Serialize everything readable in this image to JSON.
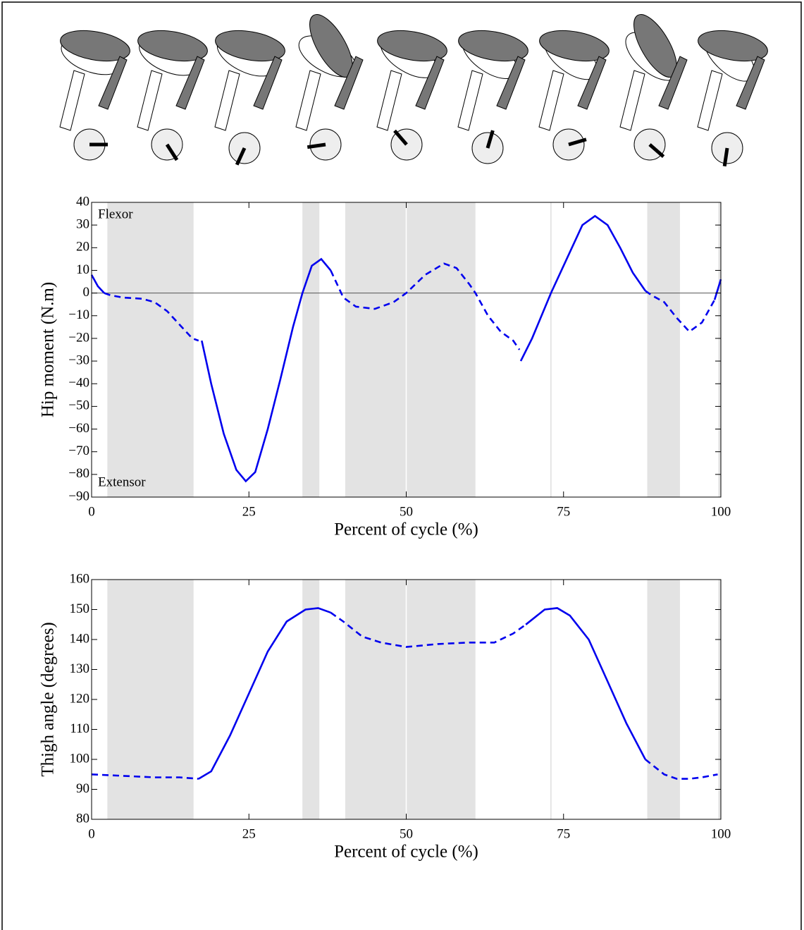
{
  "chart_data": [
    {
      "type": "line",
      "xlabel": "Percent of cycle (%)",
      "ylabel": "Hip moment (N.m)",
      "annotations": [
        "Flexor",
        "Extensor"
      ],
      "xlim": [
        0,
        100
      ],
      "xticks": [
        0,
        25,
        50,
        75,
        100
      ],
      "ylim": [
        -90,
        40
      ],
      "yticks": [
        {
          "value": -90,
          "label": "−90"
        },
        {
          "value": -80,
          "label": "−80"
        },
        {
          "value": -70,
          "label": "−70"
        },
        {
          "value": -60,
          "label": "−60"
        },
        {
          "value": -50,
          "label": "−50"
        },
        {
          "value": -40,
          "label": "−40"
        },
        {
          "value": -30,
          "label": "−30"
        },
        {
          "value": -20,
          "label": "−20"
        },
        {
          "value": -10,
          "label": "−10"
        },
        0,
        10,
        20,
        30,
        40
      ],
      "shaded_regions": [
        [
          2.5,
          16.2
        ],
        [
          33.5,
          36.2
        ],
        [
          40.3,
          61
        ],
        [
          88.3,
          93.5
        ],
        [
          99.6,
          100
        ]
      ],
      "shade_color": "#e3e3e3",
      "vlines": [
        50,
        73
      ],
      "hline": 0,
      "x": [
        0,
        1,
        2,
        3,
        5,
        8,
        10,
        12,
        14,
        16,
        17,
        17.5,
        19,
        21,
        23,
        24.5,
        26,
        28,
        30,
        32,
        33.5,
        35,
        36.5,
        38,
        40,
        42,
        45,
        48,
        50,
        53,
        56,
        58,
        60,
        61,
        63,
        65,
        67,
        68,
        68.2,
        70,
        73,
        76,
        78,
        80,
        82,
        84,
        86,
        88,
        89,
        91,
        93,
        95,
        97,
        99,
        100
      ],
      "series": [
        {
          "color": "#0000ee",
          "style": "solid",
          "values": [
            8,
            3,
            0,
            null,
            null,
            null,
            null,
            null,
            null,
            null,
            null,
            -21,
            -40,
            -62,
            -78,
            -83,
            -79,
            -60,
            -38,
            -15,
            0,
            12,
            15,
            10,
            null,
            null,
            null,
            null,
            null,
            null,
            null,
            null,
            null,
            null,
            null,
            null,
            null,
            null,
            -30,
            -20,
            0,
            18,
            30,
            34,
            30,
            20,
            9,
            1,
            null,
            null,
            null,
            null,
            null,
            -3,
            6
          ]
        },
        {
          "color": "#0000ee",
          "style": "dashed",
          "values": [
            null,
            null,
            0,
            -1,
            -2,
            -2.5,
            -4,
            -8,
            -14,
            -20,
            -21,
            null,
            null,
            null,
            null,
            null,
            null,
            null,
            null,
            null,
            null,
            null,
            null,
            10,
            -2,
            -6,
            -7,
            -4,
            0,
            8,
            13,
            11,
            4,
            0,
            -10,
            -17,
            -21,
            -25,
            null,
            null,
            null,
            null,
            null,
            null,
            null,
            null,
            null,
            1,
            -1,
            -4,
            -11,
            -17,
            -13,
            -3,
            null
          ]
        }
      ]
    },
    {
      "type": "line",
      "xlabel": "Percent of cycle (%)",
      "ylabel": "Thigh angle (degrees)",
      "xlim": [
        0,
        100
      ],
      "xticks": [
        0,
        25,
        50,
        75,
        100
      ],
      "ylim": [
        80,
        160
      ],
      "yticks": [
        80,
        90,
        100,
        110,
        120,
        130,
        140,
        150,
        160
      ],
      "shaded_regions": [
        [
          2.5,
          16.2
        ],
        [
          33.5,
          36.2
        ],
        [
          40.3,
          61
        ],
        [
          88.3,
          93.5
        ],
        [
          99.6,
          100
        ]
      ],
      "shade_color": "#e3e3e3",
      "vlines": [
        50,
        73
      ],
      "x": [
        0,
        5,
        10,
        14,
        17,
        19,
        22,
        25,
        28,
        31,
        34,
        36,
        38,
        40,
        43,
        46,
        50,
        55,
        60,
        64,
        67,
        69,
        72,
        74,
        76,
        79,
        82,
        85,
        88,
        91,
        93,
        95,
        97,
        99.5
      ],
      "series": [
        {
          "color": "#0000ee",
          "style": "solid",
          "values": [
            null,
            null,
            null,
            null,
            93.5,
            96,
            108,
            122,
            136,
            146,
            150,
            150.5,
            149,
            null,
            null,
            null,
            null,
            null,
            null,
            null,
            null,
            145,
            150,
            150.5,
            148,
            140,
            126,
            112,
            100,
            null,
            null,
            null,
            null,
            null
          ]
        },
        {
          "color": "#0000ee",
          "style": "dashed",
          "values": [
            95,
            94.5,
            94,
            94,
            93.5,
            null,
            null,
            null,
            null,
            null,
            null,
            null,
            149,
            146,
            141,
            139,
            137.5,
            138.5,
            139,
            139,
            142,
            145,
            null,
            null,
            null,
            null,
            null,
            null,
            100,
            95,
            93.5,
            93.5,
            94,
            95
          ]
        }
      ]
    }
  ]
}
